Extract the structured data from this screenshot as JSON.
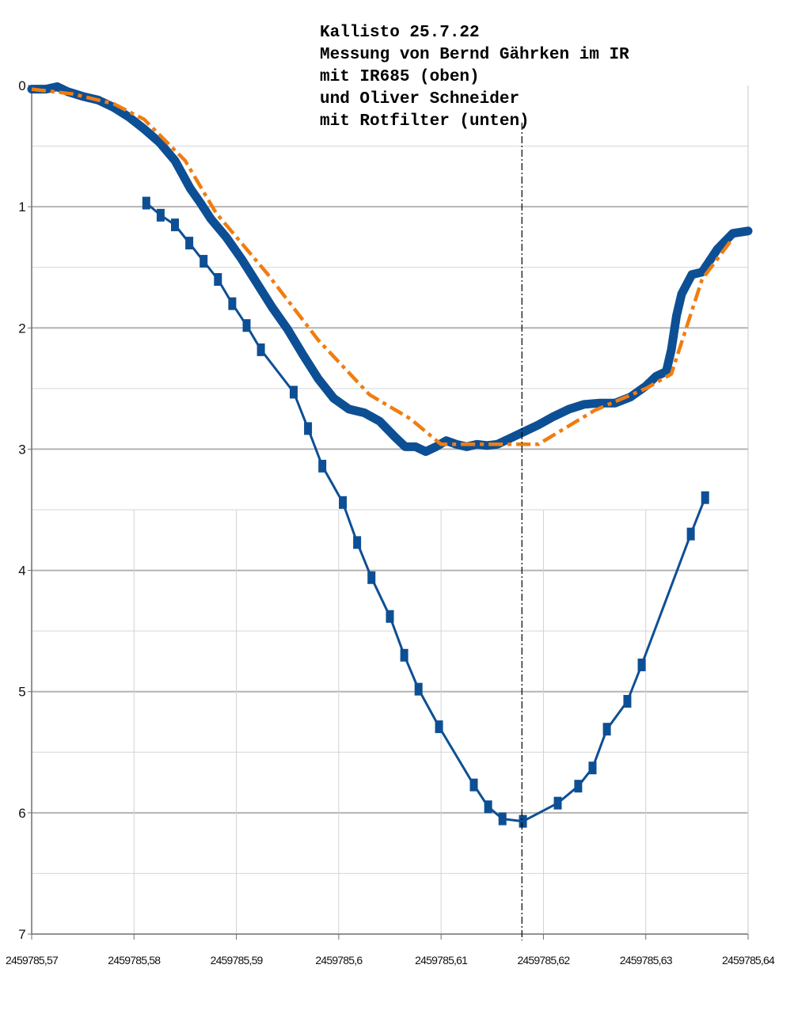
{
  "title_lines": [
    "Kallisto 25.7.22",
    "Messung von Bernd Gährken im IR",
    "mit IR685 (oben)",
    "und Oliver Schneider",
    "mit Rotfilter (unten)"
  ],
  "chart_data": {
    "type": "line",
    "title": "Kallisto 25.7.22",
    "xlim": [
      2459785.57,
      2459785.64
    ],
    "ylim": [
      0,
      7
    ],
    "y_inverted": true,
    "grid": true,
    "x_ticks": [
      2459785.57,
      2459785.58,
      2459785.59,
      2459785.6,
      2459785.61,
      2459785.62,
      2459785.63,
      2459785.64
    ],
    "x_tick_labels": [
      "2459785,57",
      "2459785,58",
      "2459785,59",
      "2459785,6",
      "2459785,61",
      "2459785,62",
      "2459785,63",
      "2459785,64"
    ],
    "y_ticks": [
      0,
      1,
      2,
      3,
      4,
      5,
      6,
      7
    ],
    "y_tick_labels": [
      "0",
      "1",
      "2",
      "3",
      "4",
      "5",
      "6",
      "7"
    ],
    "minimum_marker_x": 2459785.6179,
    "series": [
      {
        "color": "#0d4f94",
        "style": "thick-dense",
        "x": [
          2459785.57,
          2459785.5714,
          2459785.5725,
          2459785.5735,
          2459785.575,
          2459785.5765,
          2459785.578,
          2459785.5795,
          2459785.581,
          2459785.5825,
          2459785.584,
          2459785.5855,
          2459785.5865,
          2459785.5875,
          2459785.589,
          2459785.5905,
          2459785.592,
          2459785.5935,
          2459785.595,
          2459785.5965,
          2459785.598,
          2459785.5995,
          2459785.601,
          2459785.6025,
          2459785.604,
          2459785.6055,
          2459785.6065,
          2459785.6075,
          2459785.6085,
          2459785.6095,
          2459785.6105,
          2459785.6115,
          2459785.6125,
          2459785.6135,
          2459785.6145,
          2459785.6155,
          2459785.6165,
          2459785.618,
          2459785.6195,
          2459785.621,
          2459785.6225,
          2459785.624,
          2459785.6255,
          2459785.627,
          2459785.6285,
          2459785.63,
          2459785.631,
          2459785.632,
          2459785.6325,
          2459785.633,
          2459785.6335,
          2459785.6345,
          2459785.6355,
          2459785.637,
          2459785.6385,
          2459785.64
        ],
        "y": [
          0.03,
          0.03,
          0.01,
          0.05,
          0.09,
          0.12,
          0.18,
          0.26,
          0.36,
          0.47,
          0.62,
          0.85,
          0.97,
          1.1,
          1.25,
          1.43,
          1.63,
          1.83,
          2.01,
          2.22,
          2.42,
          2.58,
          2.67,
          2.7,
          2.77,
          2.9,
          2.98,
          2.98,
          3.02,
          2.98,
          2.93,
          2.96,
          2.98,
          2.96,
          2.97,
          2.96,
          2.92,
          2.86,
          2.8,
          2.73,
          2.67,
          2.63,
          2.62,
          2.62,
          2.57,
          2.48,
          2.4,
          2.36,
          2.18,
          1.9,
          1.72,
          1.56,
          1.54,
          1.35,
          1.22,
          1.2
        ]
      },
      {
        "color": "#f07d10",
        "style": "dash-dot",
        "x": [
          2459785.57,
          2459785.574,
          2459785.578,
          2459785.581,
          2459785.585,
          2459785.588,
          2459785.593,
          2459785.598,
          2459785.603,
          2459785.607,
          2459785.61,
          2459785.615,
          2459785.6195,
          2459785.625,
          2459785.63,
          2459785.6325,
          2459785.6355,
          2459785.6385
        ],
        "y": [
          0.03,
          0.07,
          0.15,
          0.28,
          0.62,
          1.05,
          1.55,
          2.1,
          2.55,
          2.75,
          2.96,
          2.96,
          2.96,
          2.68,
          2.5,
          2.38,
          1.6,
          1.26
        ]
      },
      {
        "color": "#0d4f94",
        "style": "line-square-markers",
        "x": [
          2459785.5812,
          2459785.5826,
          2459785.584,
          2459785.5854,
          2459785.5868,
          2459785.5882,
          2459785.5896,
          2459785.591,
          2459785.5924,
          2459785.5956,
          2459785.597,
          2459785.5984,
          2459785.6004,
          2459785.6018,
          2459785.6032,
          2459785.605,
          2459785.6064,
          2459785.6078,
          2459785.6098,
          2459785.6132,
          2459785.6146,
          2459785.616,
          2459785.618,
          2459785.6214,
          2459785.6234,
          2459785.6248,
          2459785.6262,
          2459785.6282,
          2459785.6296,
          2459785.6344,
          2459785.6358
        ],
        "y": [
          0.97,
          1.07,
          1.15,
          1.3,
          1.45,
          1.6,
          1.8,
          1.98,
          2.18,
          2.53,
          2.83,
          3.14,
          3.44,
          3.77,
          4.06,
          4.38,
          4.7,
          4.98,
          5.29,
          5.77,
          5.95,
          6.05,
          6.07,
          5.92,
          5.78,
          5.63,
          5.31,
          5.08,
          4.78,
          3.7,
          3.4
        ]
      }
    ]
  }
}
